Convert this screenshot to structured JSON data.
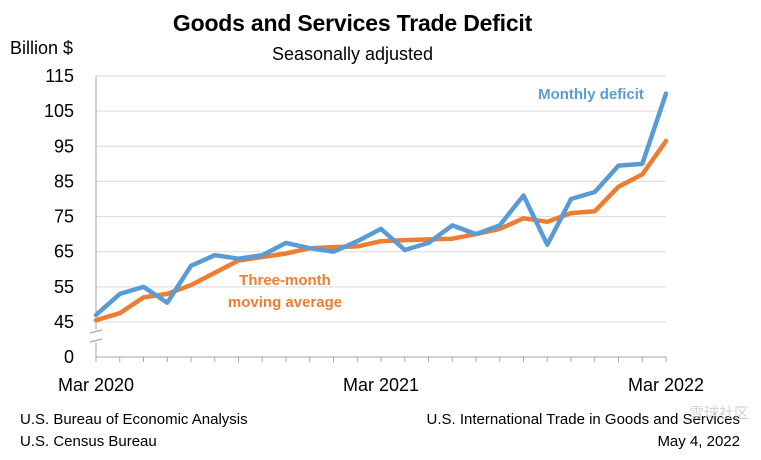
{
  "header": {
    "title": "Goods and Services Trade Deficit",
    "subtitle": "Seasonally adjusted",
    "unit_label": "Billion $"
  },
  "footer": {
    "left_line1": "U.S. Bureau of Economic Analysis",
    "left_line2": "U.S. Census Bureau",
    "right_line1": "U.S. International Trade in Goods and Services",
    "right_line2": "May 4, 2022"
  },
  "watermark": "雪球社区",
  "colors": {
    "monthly": "#5b9bd5",
    "average": "#ed7d31",
    "grid": "#d9d9d9"
  },
  "chart_data": {
    "type": "line",
    "title": "Goods and Services Trade Deficit",
    "subtitle": "Seasonally adjusted",
    "ylabel": "Billion $",
    "x": [
      "2020-03",
      "2020-04",
      "2020-05",
      "2020-06",
      "2020-07",
      "2020-08",
      "2020-09",
      "2020-10",
      "2020-11",
      "2020-12",
      "2021-01",
      "2021-02",
      "2021-03",
      "2021-04",
      "2021-05",
      "2021-06",
      "2021-07",
      "2021-08",
      "2021-09",
      "2021-10",
      "2021-11",
      "2021-12",
      "2022-01",
      "2022-02",
      "2022-03"
    ],
    "x_tick_labels": [
      "Mar 2020",
      "Mar 2021",
      "Mar 2022"
    ],
    "x_tick_positions": [
      "2020-03",
      "2021-03",
      "2022-03"
    ],
    "y_ticks": [
      0,
      45,
      55,
      65,
      75,
      85,
      95,
      105,
      115
    ],
    "ylim": [
      45,
      115
    ],
    "axis_break": true,
    "grid": true,
    "series": [
      {
        "name": "Monthly deficit",
        "color": "#5b9bd5",
        "values": [
          47,
          53,
          55,
          50.5,
          61,
          64,
          63,
          64,
          67.5,
          66,
          65,
          68,
          71.5,
          65.5,
          67.5,
          72.5,
          70,
          72.5,
          81,
          67,
          80,
          82,
          89.5,
          90,
          110
        ]
      },
      {
        "name": "Three-month moving average",
        "color": "#ed7d31",
        "values": [
          45.5,
          47.5,
          52,
          53,
          55.5,
          59,
          62.5,
          63.5,
          64.5,
          66,
          66.3,
          66.5,
          68,
          68.3,
          68.5,
          68.7,
          70,
          71.5,
          74.5,
          73.5,
          76,
          76.5,
          83.5,
          87,
          96.5
        ]
      }
    ],
    "annotations": [
      {
        "text": "Monthly deficit",
        "series": "Monthly deficit"
      },
      {
        "text": "Three-month",
        "series": "Three-month moving average"
      },
      {
        "text": "moving average",
        "series": "Three-month moving average"
      }
    ]
  }
}
